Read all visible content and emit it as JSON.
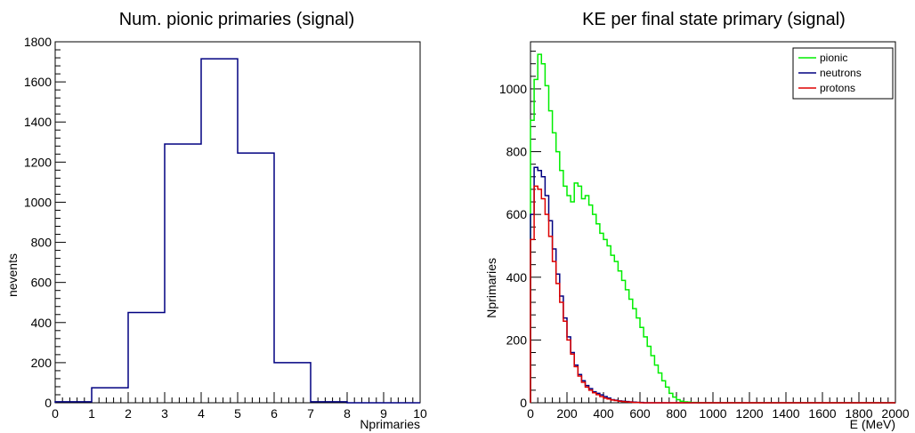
{
  "chart_data": [
    {
      "type": "histogram",
      "title": "Num. pionic primaries (signal)",
      "xlabel": "Nprimaries",
      "ylabel": "nevents",
      "xlim": [
        0,
        10
      ],
      "ylim": [
        0,
        1800
      ],
      "x_ticks": [
        0,
        1,
        2,
        3,
        4,
        5,
        6,
        7,
        8,
        9,
        10
      ],
      "y_ticks": [
        0,
        200,
        400,
        600,
        800,
        1000,
        1200,
        1400,
        1600,
        1800
      ],
      "grid": false,
      "series": [
        {
          "color": "#000080",
          "bin_edges": [
            0,
            1,
            2,
            3,
            4,
            5,
            6,
            7,
            8,
            9,
            10
          ],
          "values": [
            5,
            75,
            450,
            1290,
            1715,
            1245,
            200,
            5,
            0,
            0
          ]
        }
      ]
    },
    {
      "type": "histogram",
      "title": "KE per final state primary (signal)",
      "xlabel": "E (MeV)",
      "ylabel": "Nprimaries",
      "xlim": [
        0,
        2000
      ],
      "ylim": [
        0,
        1150
      ],
      "x_ticks": [
        0,
        200,
        400,
        600,
        800,
        1000,
        1200,
        1400,
        1600,
        1800,
        2000
      ],
      "y_ticks": [
        0,
        200,
        400,
        600,
        800,
        1000
      ],
      "grid": false,
      "legend_position": "top-right",
      "bin_width": 20,
      "series": [
        {
          "name": "pionic",
          "color": "#00ee00",
          "values": [
            900,
            1030,
            1110,
            1080,
            1010,
            930,
            860,
            800,
            740,
            690,
            660,
            640,
            700,
            690,
            650,
            660,
            630,
            600,
            570,
            540,
            520,
            500,
            470,
            450,
            420,
            390,
            360,
            330,
            300,
            270,
            240,
            210,
            180,
            150,
            120,
            95,
            70,
            50,
            30,
            18,
            10,
            5,
            3,
            2,
            1,
            1,
            0,
            0,
            0,
            0
          ]
        },
        {
          "name": "neutrons",
          "color": "#000080",
          "values": [
            600,
            750,
            740,
            720,
            660,
            580,
            490,
            410,
            340,
            270,
            210,
            160,
            120,
            90,
            70,
            55,
            45,
            35,
            30,
            25,
            20,
            15,
            10,
            8,
            6,
            5,
            4,
            3,
            2,
            1,
            1,
            0,
            0,
            0,
            0
          ]
        },
        {
          "name": "protons",
          "color": "#dd0000",
          "values": [
            520,
            690,
            680,
            650,
            600,
            530,
            450,
            380,
            320,
            260,
            200,
            155,
            115,
            85,
            65,
            50,
            40,
            32,
            26,
            20,
            15,
            12,
            9,
            7,
            5,
            4,
            3,
            2,
            1,
            1,
            0,
            0,
            0,
            0,
            0
          ]
        }
      ]
    }
  ]
}
